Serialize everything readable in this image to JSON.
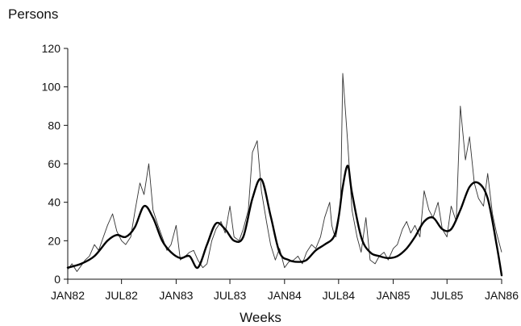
{
  "chart_data": {
    "type": "line",
    "title": "",
    "ylabel": "Persons",
    "xlabel": "Weeks",
    "ylim": [
      0,
      120
    ],
    "yticks": [
      0,
      20,
      40,
      60,
      80,
      100,
      120
    ],
    "xlim": [
      "1982-01",
      "1986-01"
    ],
    "xticks": [
      "JAN82",
      "JUL82",
      "JAN83",
      "JUL83",
      "JAN84",
      "JUL84",
      "JAN85",
      "JUL85",
      "JAN86"
    ],
    "grid": false,
    "legend": "none",
    "series": [
      {
        "style": "thin",
        "x": [
          "1982-01-01",
          "1982-01-15",
          "1982-02-01",
          "1982-02-15",
          "1982-03-01",
          "1982-03-15",
          "1982-04-01",
          "1982-04-15",
          "1982-05-01",
          "1982-05-15",
          "1982-06-01",
          "1982-06-15",
          "1982-07-01",
          "1982-07-15",
          "1982-08-01",
          "1982-08-15",
          "1982-09-01",
          "1982-09-15",
          "1982-10-01",
          "1982-10-15",
          "1982-11-01",
          "1982-11-15",
          "1982-12-01",
          "1982-12-15",
          "1983-01-01",
          "1983-01-15",
          "1983-02-01",
          "1983-02-15",
          "1983-03-01",
          "1983-03-15",
          "1983-04-01",
          "1983-04-15",
          "1983-05-01",
          "1983-05-15",
          "1983-06-01",
          "1983-06-15",
          "1983-07-01",
          "1983-07-15",
          "1983-08-01",
          "1983-08-15",
          "1983-09-01",
          "1983-09-15",
          "1983-10-01",
          "1983-10-15",
          "1983-11-01",
          "1983-11-15",
          "1983-12-01",
          "1983-12-15",
          "1984-01-01",
          "1984-01-15",
          "1984-02-01",
          "1984-02-15",
          "1984-03-01",
          "1984-03-15",
          "1984-04-01",
          "1984-04-15",
          "1984-05-01",
          "1984-05-15",
          "1984-06-01",
          "1984-06-08",
          "1984-06-15",
          "1984-06-22",
          "1984-07-01",
          "1984-07-08",
          "1984-07-15",
          "1984-08-01",
          "1984-08-15",
          "1984-09-01",
          "1984-09-15",
          "1984-10-01",
          "1984-10-15",
          "1984-11-01",
          "1984-11-15",
          "1984-12-01",
          "1984-12-15",
          "1985-01-01",
          "1985-01-15",
          "1985-02-01",
          "1985-02-15",
          "1985-03-01",
          "1985-03-15",
          "1985-04-01",
          "1985-04-15",
          "1985-05-01",
          "1985-05-15",
          "1985-06-01",
          "1985-06-15",
          "1985-07-01",
          "1985-07-15",
          "1985-08-01",
          "1985-08-15",
          "1985-09-01",
          "1985-09-15",
          "1985-10-01",
          "1985-10-15",
          "1985-11-01",
          "1985-11-15",
          "1985-12-01",
          "1985-12-15",
          "1986-01-01"
        ],
        "y": [
          5,
          8,
          4,
          7,
          10,
          12,
          18,
          15,
          22,
          28,
          34,
          25,
          20,
          18,
          22,
          35,
          50,
          44,
          60,
          36,
          28,
          22,
          15,
          18,
          28,
          10,
          12,
          14,
          15,
          10,
          6,
          8,
          20,
          26,
          30,
          24,
          38,
          22,
          20,
          26,
          36,
          66,
          72,
          46,
          30,
          18,
          10,
          16,
          6,
          9,
          10,
          12,
          8,
          14,
          18,
          16,
          22,
          32,
          40,
          28,
          24,
          22,
          30,
          42,
          107,
          70,
          36,
          22,
          14,
          32,
          10,
          8,
          12,
          14,
          10,
          16,
          18,
          26,
          30,
          24,
          28,
          22,
          46,
          36,
          32,
          40,
          26,
          22,
          38,
          30,
          90,
          62,
          74,
          50,
          42,
          38,
          55,
          34,
          24,
          14
        ]
      },
      {
        "style": "smooth",
        "x": [
          "1982-01-01",
          "1982-02-15",
          "1982-04-01",
          "1982-05-15",
          "1982-06-15",
          "1982-07-15",
          "1982-08-15",
          "1982-09-15",
          "1982-10-15",
          "1982-11-15",
          "1982-12-15",
          "1983-01-15",
          "1983-02-15",
          "1983-03-15",
          "1983-04-15",
          "1983-05-15",
          "1983-06-15",
          "1983-07-15",
          "1983-08-15",
          "1983-09-15",
          "1983-10-15",
          "1983-11-15",
          "1983-12-15",
          "1984-01-15",
          "1984-02-15",
          "1984-03-15",
          "1984-04-15",
          "1984-05-15",
          "1984-06-15",
          "1984-07-01",
          "1984-07-15",
          "1984-08-01",
          "1984-08-15",
          "1984-09-15",
          "1984-10-15",
          "1984-11-15",
          "1984-12-15",
          "1985-01-15",
          "1985-02-15",
          "1985-03-15",
          "1985-04-15",
          "1985-05-15",
          "1985-06-15",
          "1985-07-15",
          "1985-08-15",
          "1985-09-15",
          "1985-10-15",
          "1985-11-15",
          "1985-12-15",
          "1986-01-01"
        ],
        "y": [
          6,
          8,
          12,
          20,
          23,
          22,
          27,
          38,
          32,
          20,
          14,
          11,
          12,
          6,
          18,
          29,
          26,
          20,
          22,
          42,
          52,
          33,
          14,
          10,
          9,
          10,
          15,
          18,
          22,
          32,
          48,
          59,
          45,
          22,
          14,
          12,
          11,
          12,
          16,
          22,
          30,
          32,
          26,
          26,
          36,
          48,
          50,
          42,
          18,
          2
        ]
      }
    ]
  }
}
